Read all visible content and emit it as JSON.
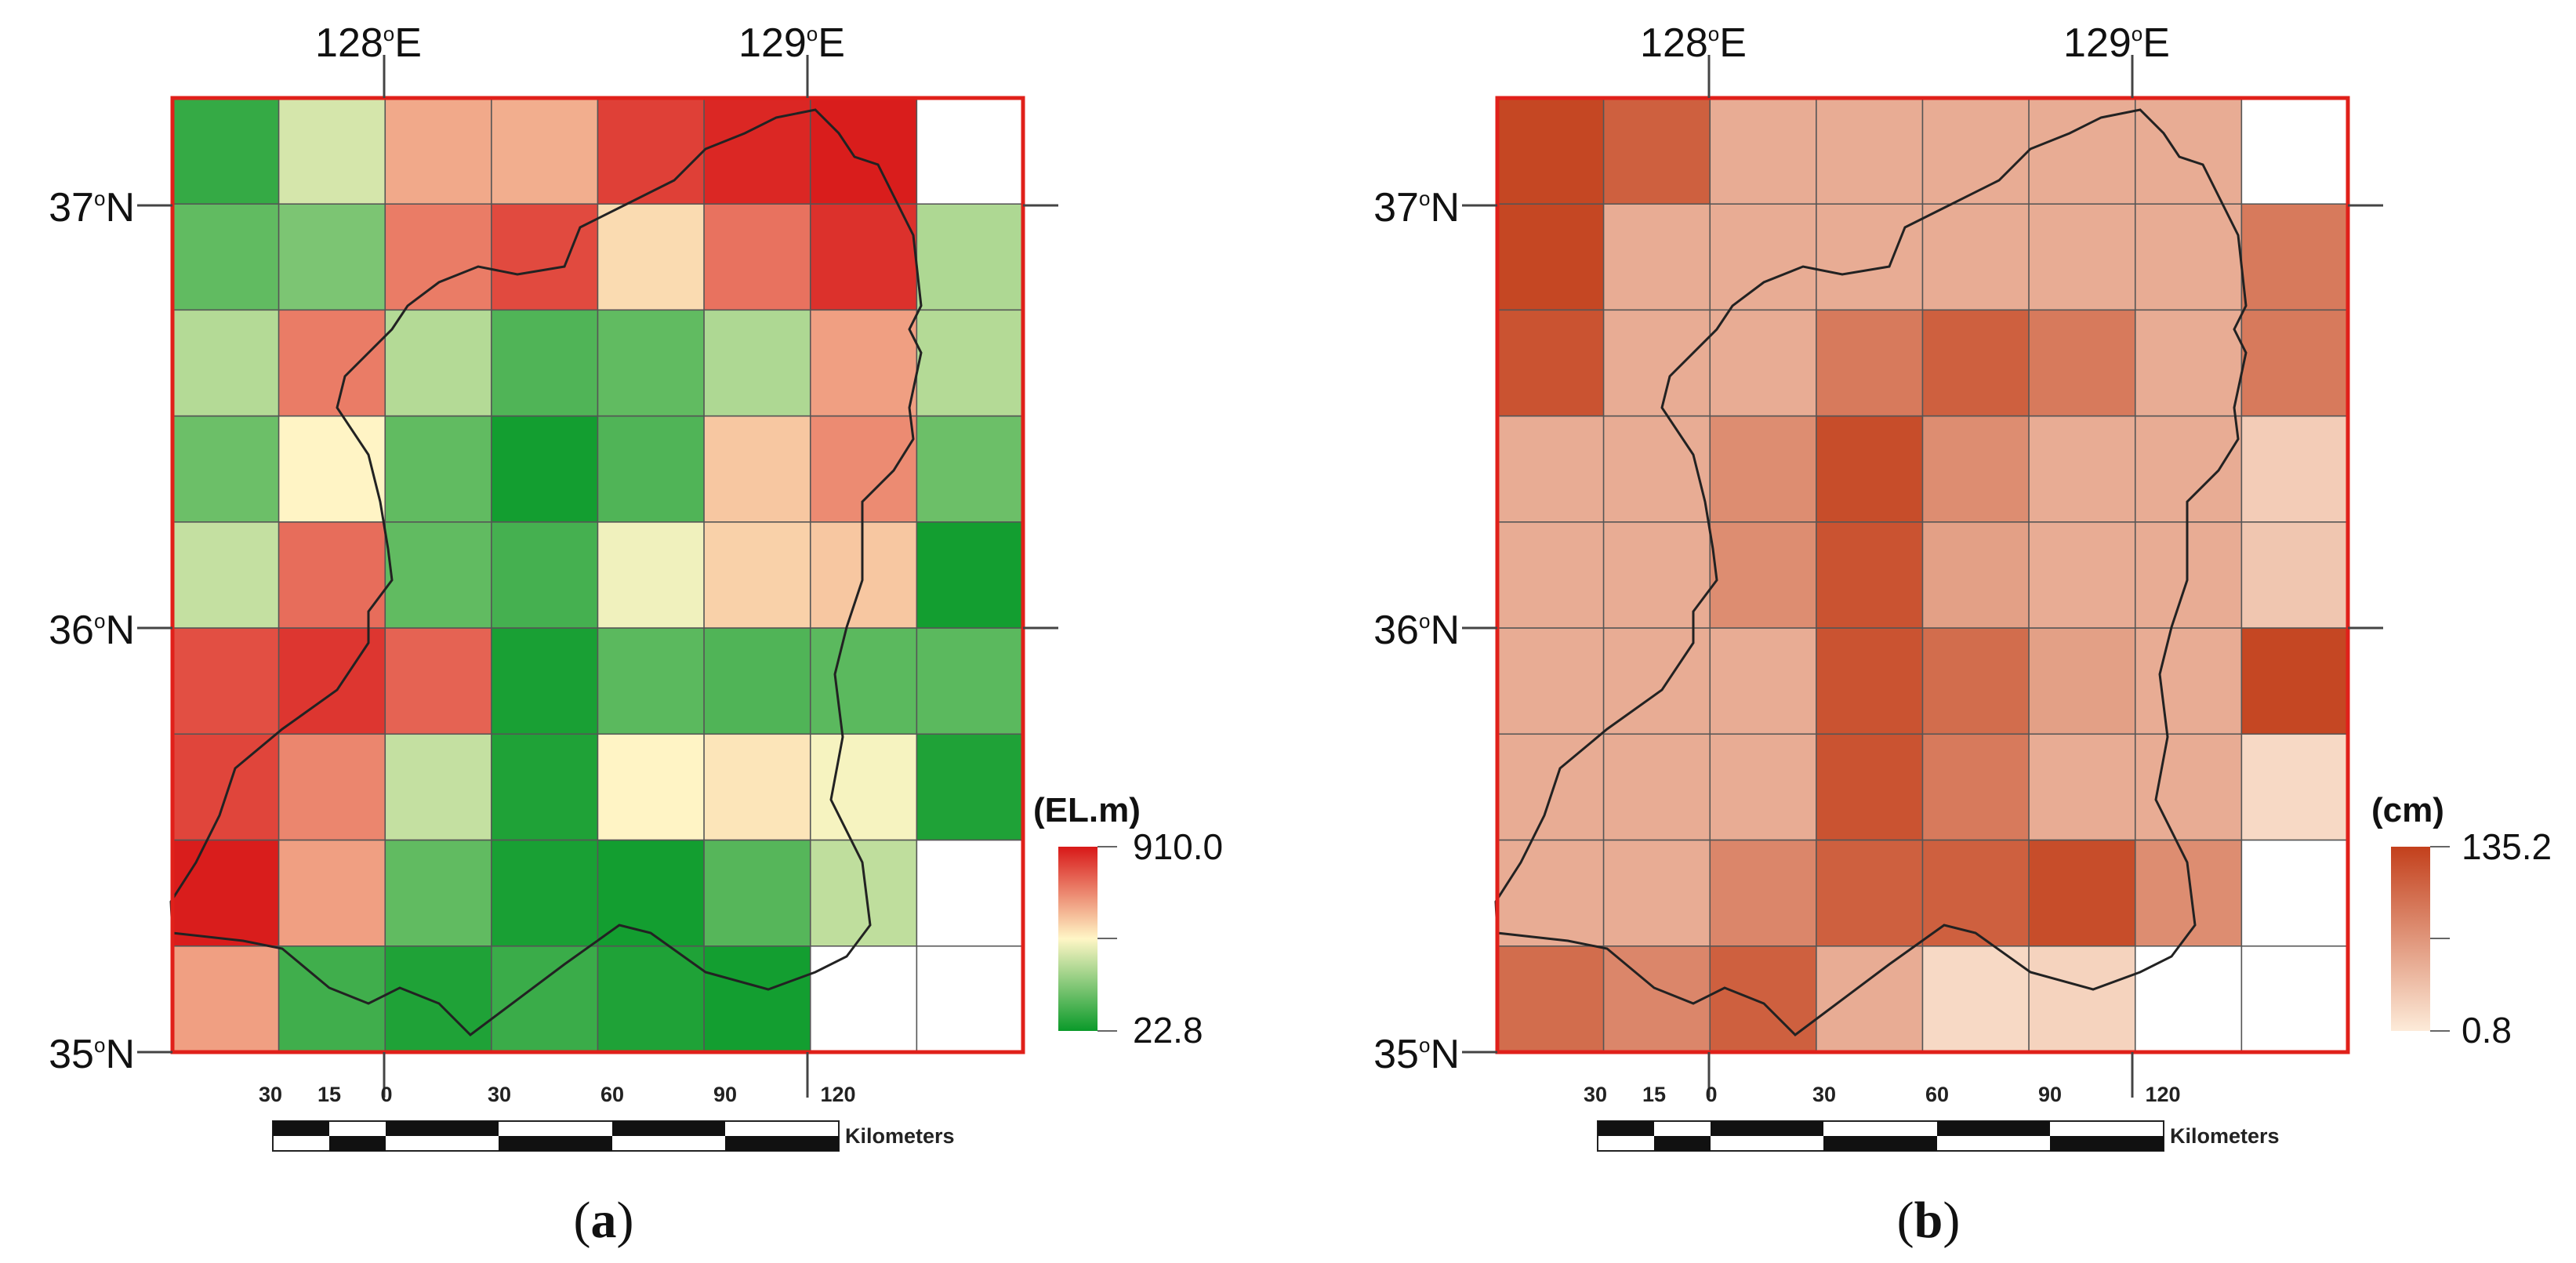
{
  "figure": {
    "scale_bar": {
      "labels": [
        "30",
        "15",
        "0",
        "30",
        "60",
        "90",
        "120"
      ],
      "unit": "Kilometers"
    },
    "grid": {
      "rows": 9,
      "cols": 8
    },
    "panels": [
      {
        "id": "a",
        "label_open": "(",
        "label_letter": "a",
        "label_close": ")",
        "lon_labels": [
          {
            "num": "128",
            "sup": "o",
            "suffix": "E",
            "value": 128
          },
          {
            "num": "129",
            "sup": "o",
            "suffix": "E",
            "value": 129
          }
        ],
        "lat_labels": [
          {
            "num": "37",
            "sup": "o",
            "suffix": "N",
            "value": 37
          },
          {
            "num": "36",
            "sup": "o",
            "suffix": "N",
            "value": 36
          },
          {
            "num": "35",
            "sup": "o",
            "suffix": "N",
            "value": 35
          }
        ],
        "legend": {
          "title": "(EL.m)",
          "max_label": "910.0",
          "min_label": "22.8",
          "max": 910.0,
          "min": 22.8
        },
        "colors": {
          "low": "#0a9a2a",
          "mid": "#fff6c6",
          "high": "#d81818",
          "border": "#e0201a"
        },
        "cells": [
          [
            100,
            390,
            620,
            610,
            830,
            880,
            900,
            null
          ],
          [
            180,
            230,
            710,
            810,
            520,
            730,
            860,
            320
          ],
          [
            330,
            710,
            330,
            150,
            180,
            320,
            640,
            330
          ],
          [
            200,
            470,
            180,
            40,
            150,
            560,
            680,
            200
          ],
          [
            360,
            740,
            180,
            130,
            440,
            540,
            560,
            40
          ],
          [
            800,
            850,
            760,
            50,
            170,
            150,
            170,
            170
          ],
          [
            820,
            690,
            360,
            60,
            470,
            500,
            450,
            60
          ],
          [
            900,
            640,
            180,
            50,
            40,
            160,
            350,
            null
          ],
          [
            640,
            120,
            60,
            110,
            60,
            40,
            null,
            null
          ]
        ]
      },
      {
        "id": "b",
        "label_open": "(",
        "label_letter": "b",
        "label_close": ")",
        "lon_labels": [
          {
            "num": "128",
            "sup": "o",
            "suffix": "E",
            "value": 128
          },
          {
            "num": "129",
            "sup": "o",
            "suffix": "E",
            "value": 129
          }
        ],
        "lat_labels": [
          {
            "num": "37",
            "sup": "o",
            "suffix": "N",
            "value": 37
          },
          {
            "num": "36",
            "sup": "o",
            "suffix": "N",
            "value": 36
          },
          {
            "num": "35",
            "sup": "o",
            "suffix": "N",
            "value": 35
          }
        ],
        "legend": {
          "title": "(cm)",
          "max_label": "135.2",
          "min_label": "0.8",
          "max": 135.2,
          "min": 0.8
        },
        "colors": {
          "low": "#fdebd9",
          "high": "#c3401c",
          "border": "#e0201a"
        },
        "cells": [
          [
            130,
            110,
            50,
            50,
            50,
            50,
            50,
            null
          ],
          [
            130,
            50,
            50,
            50,
            50,
            50,
            50,
            90
          ],
          [
            120,
            50,
            50,
            90,
            110,
            90,
            50,
            90
          ],
          [
            50,
            50,
            75,
            125,
            75,
            50,
            50,
            25
          ],
          [
            50,
            50,
            75,
            120,
            60,
            50,
            50,
            30
          ],
          [
            50,
            50,
            50,
            120,
            100,
            60,
            50,
            130
          ],
          [
            50,
            50,
            50,
            120,
            90,
            50,
            50,
            15
          ],
          [
            50,
            50,
            80,
            110,
            110,
            125,
            75,
            null
          ],
          [
            100,
            80,
            110,
            50,
            15,
            20,
            null,
            null
          ]
        ]
      }
    ]
  }
}
